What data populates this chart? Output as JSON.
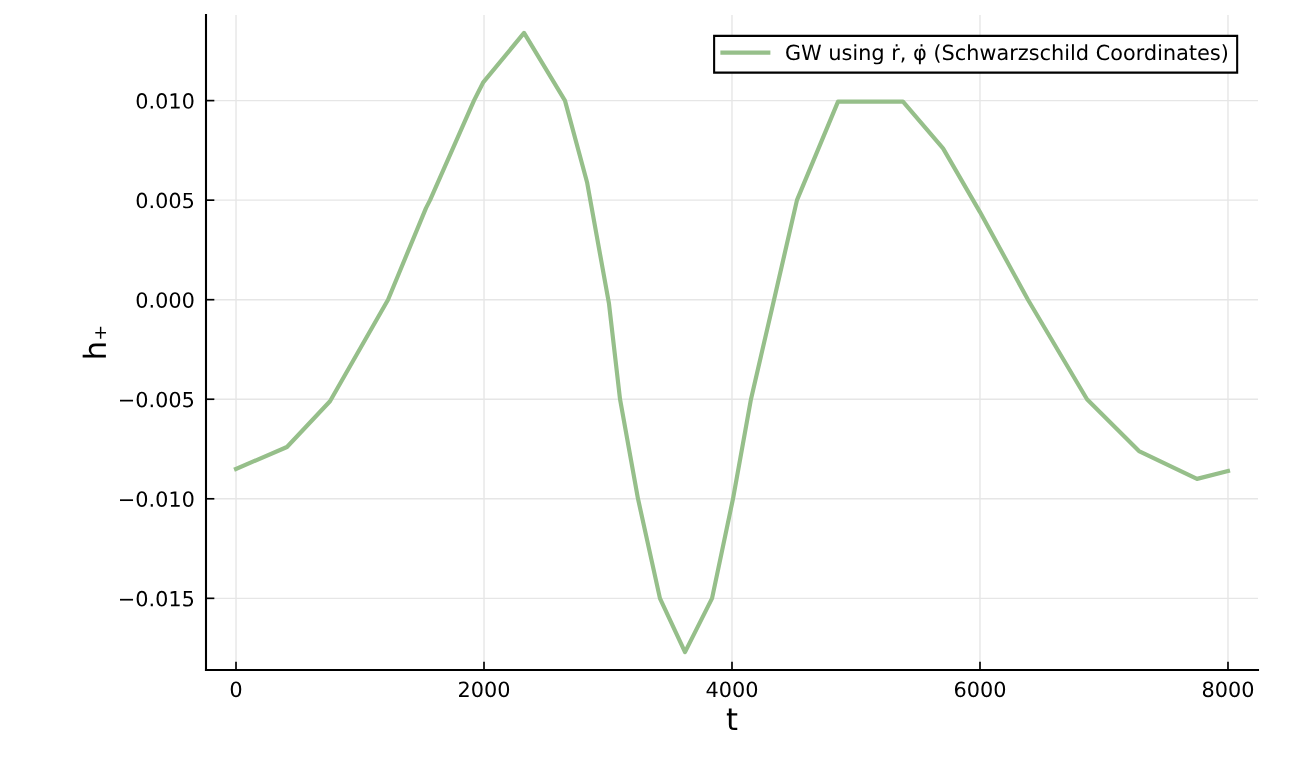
{
  "chart_data": {
    "type": "line",
    "xlabel": "t",
    "ylabel": "h₊",
    "x": [
      0,
      411,
      758,
      1226,
      1532,
      1565,
      1919,
      1992,
      2323,
      2653,
      2831,
      3008,
      3097,
      3242,
      3419,
      3621,
      3839,
      4008,
      4153,
      4339,
      4524,
      4855,
      5379,
      5702,
      6000,
      6387,
      6863,
      7282,
      7750,
      8000
    ],
    "series": [
      {
        "name": "GW using ṙ, φ̇ (Schwarzschild Coordinates)",
        "color": "#96bf8a",
        "values": [
          -0.0085,
          -0.0074,
          -0.0051,
          0.0,
          0.0046,
          0.005,
          0.01,
          0.0109,
          0.0134,
          0.01,
          0.0059,
          -0.0002,
          -0.005,
          -0.01,
          -0.015,
          -0.0177,
          -0.015,
          -0.01,
          -0.005,
          0.0,
          0.005,
          0.00995,
          0.00995,
          0.0076,
          0.0044,
          0.0,
          -0.005,
          -0.0076,
          -0.009,
          -0.0086
        ]
      }
    ],
    "xlim": [
      -242,
      8242
    ],
    "ylim": [
      -0.0186,
      0.0143
    ],
    "xticks": [
      0,
      2000,
      4000,
      6000,
      8000
    ],
    "yticks": [
      {
        "value": -0.015,
        "label": "−0.015"
      },
      {
        "value": -0.01,
        "label": "−0.010"
      },
      {
        "value": -0.005,
        "label": "−0.005"
      },
      {
        "value": 0,
        "label": "0.000"
      },
      {
        "value": 0.005,
        "label": "0.005"
      },
      {
        "value": 0.01,
        "label": "0.010"
      }
    ],
    "grid": true,
    "legend": "top right",
    "marker": "none",
    "line_style": "solid"
  }
}
